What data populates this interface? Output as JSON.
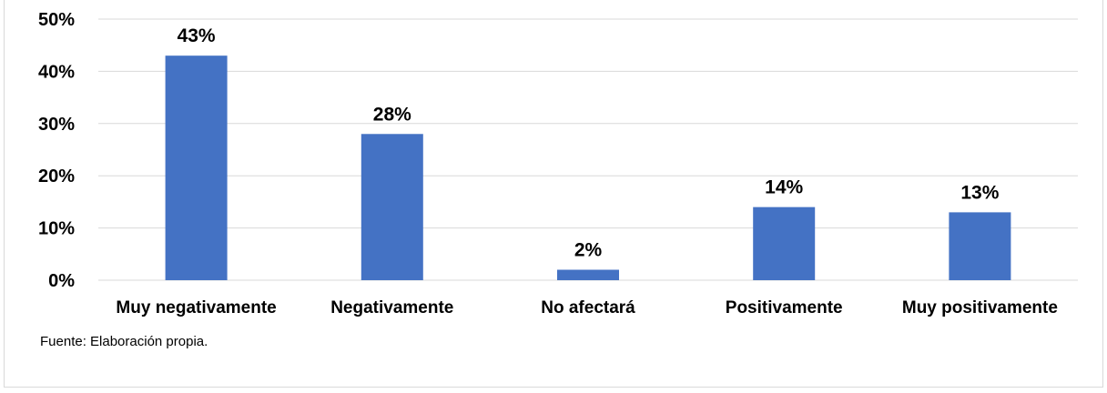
{
  "chart_data": {
    "type": "bar",
    "categories": [
      "Muy negativamente",
      "Negativamente",
      "No afectará",
      "Positivamente",
      "Muy positivamente"
    ],
    "values": [
      43,
      28,
      2,
      14,
      13
    ],
    "data_labels": [
      "43%",
      "28%",
      "2%",
      "14%",
      "13%"
    ],
    "yticks": [
      "0%",
      "10%",
      "20%",
      "30%",
      "40%",
      "50%"
    ],
    "ylim": [
      0,
      50
    ],
    "grid": true,
    "bar_color": "#4472C4",
    "grid_color": "#d9d9d9"
  },
  "source": "Fuente: Elaboración propia."
}
